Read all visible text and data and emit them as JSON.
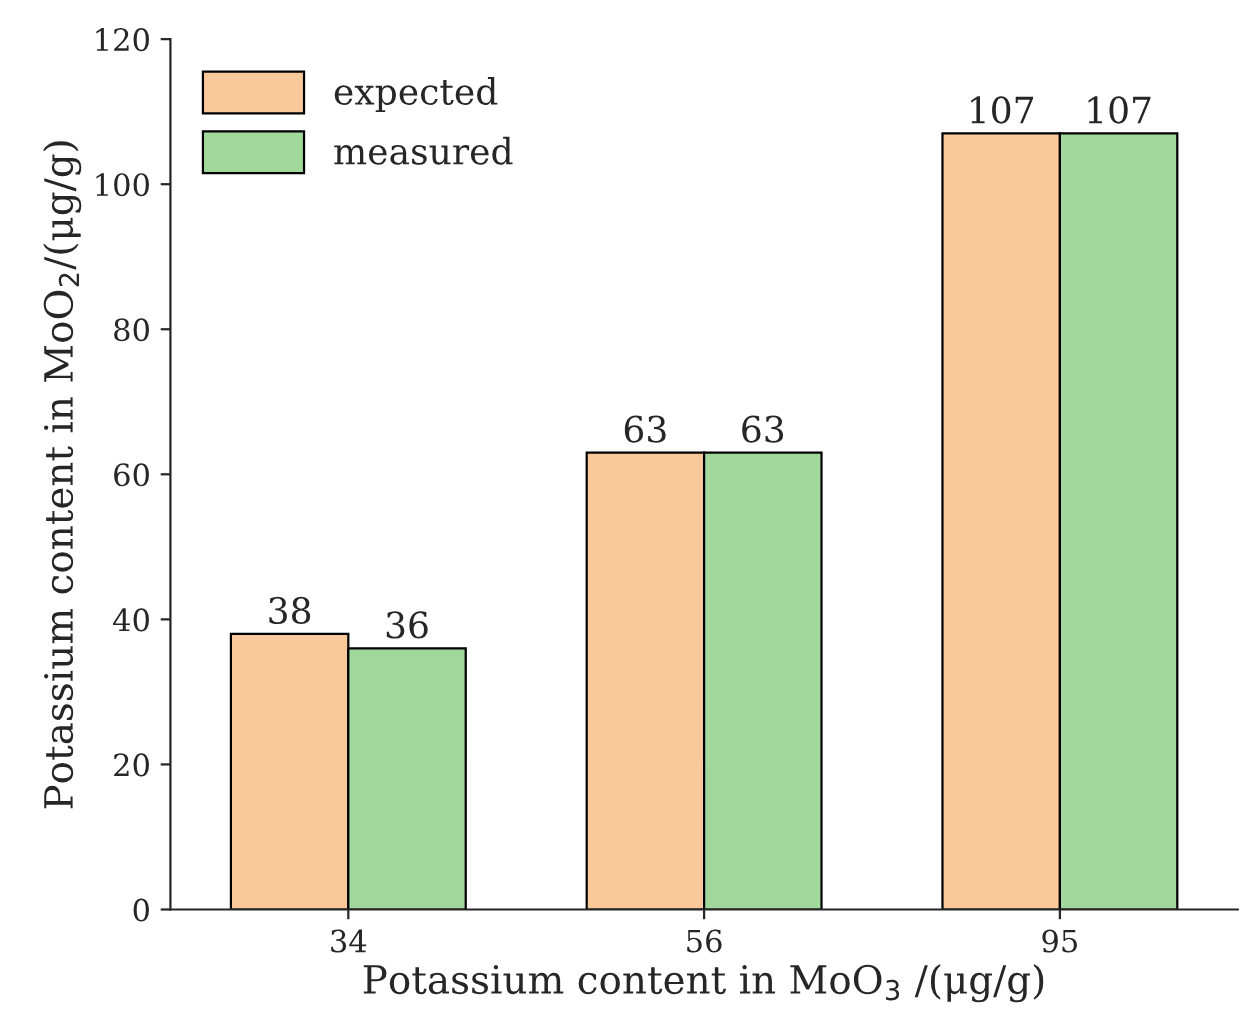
{
  "chart_data": {
    "type": "bar",
    "xlabel": "Potassium content in MoO$_{3}$ /(μg/g)",
    "ylabel": "Potassium content in MoO$_{2}$/(μg/g)",
    "categories": [
      "34",
      "56",
      "95"
    ],
    "series": [
      {
        "name": "expected",
        "color": "#f9c89b",
        "values": [
          38,
          63,
          107
        ]
      },
      {
        "name": "measured",
        "color": "#a0d99b",
        "values": [
          36,
          63,
          107
        ]
      }
    ],
    "ylim": [
      0,
      120
    ],
    "yticks": [
      0,
      20,
      40,
      60,
      80,
      100,
      120
    ],
    "grid": false,
    "legend": "top left",
    "data_labels": true
  }
}
